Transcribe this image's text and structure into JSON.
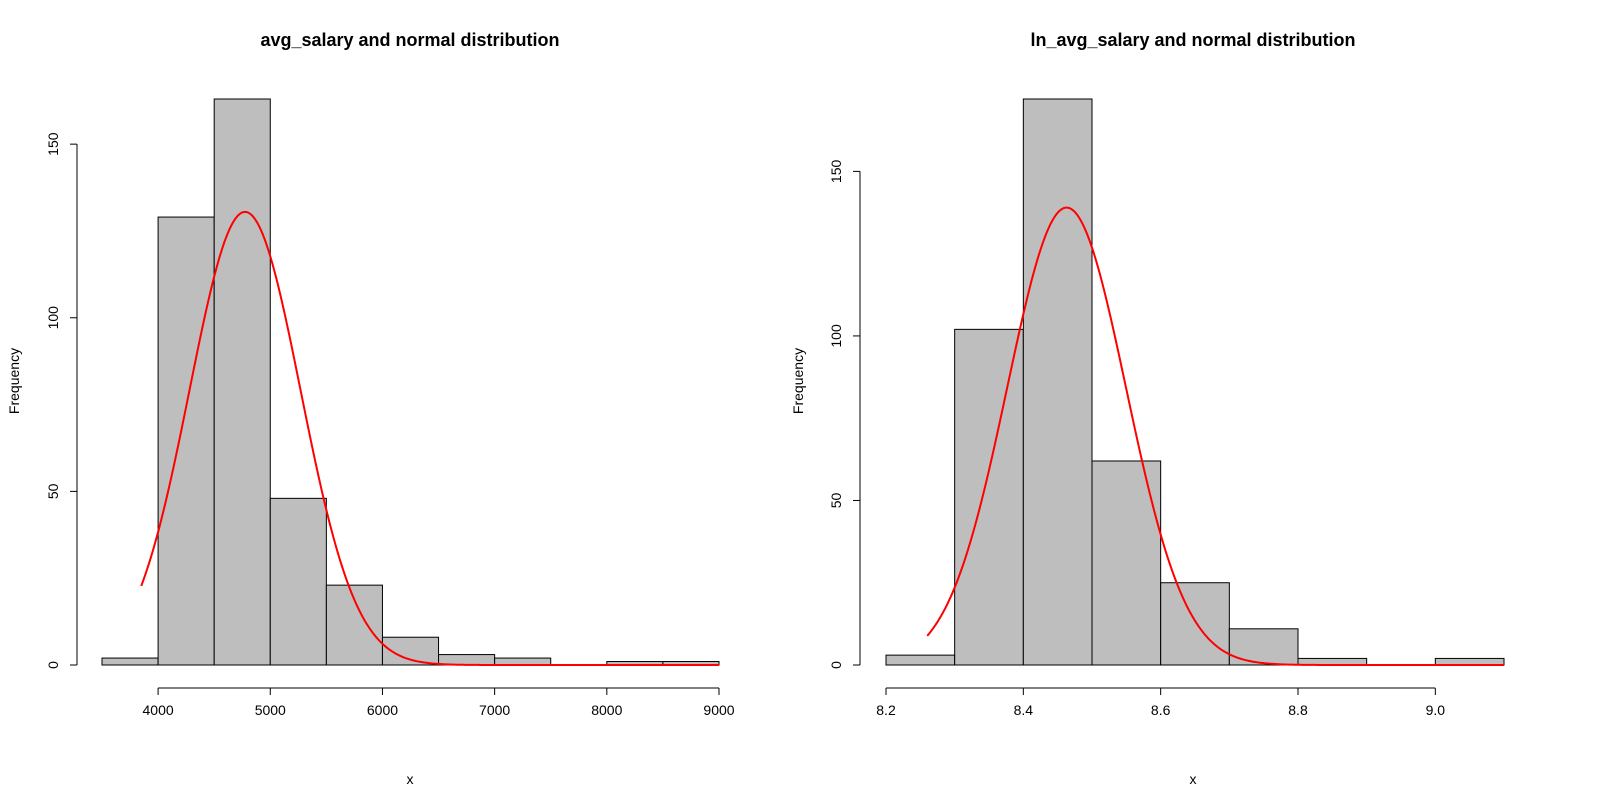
{
  "chart_data": [
    {
      "type": "bar",
      "title": "avg_salary and normal distribution",
      "xlabel": "x",
      "ylabel": "Frequency",
      "bin_edges": [
        3500,
        4000,
        4500,
        5000,
        5500,
        6000,
        6500,
        7000,
        7500,
        8000,
        8500,
        9000
      ],
      "values": [
        2,
        129,
        163,
        48,
        23,
        8,
        3,
        2,
        0,
        1,
        1
      ],
      "xticks": [
        4000,
        5000,
        6000,
        7000,
        8000,
        9000
      ],
      "xtick_labels": [
        "4000",
        "5000",
        "6000",
        "7000",
        "8000",
        "9000"
      ],
      "yticks": [
        0,
        50,
        100,
        150
      ],
      "ytick_labels": [
        "0",
        "50",
        "100",
        "150"
      ],
      "xlim": [
        3500,
        9000
      ],
      "ylim": [
        0,
        163
      ],
      "bar_color": "#bebebe",
      "normal_curve": {
        "color": "#ff0000",
        "mean": 4775,
        "sd": 495,
        "peak": 130.5,
        "x_range": [
          3850,
          9000
        ]
      }
    },
    {
      "type": "bar",
      "title": "ln_avg_salary and normal distribution",
      "xlabel": "x",
      "ylabel": "Frequency",
      "bin_edges": [
        8.2,
        8.3,
        8.4,
        8.5,
        8.6,
        8.7,
        8.8,
        8.9,
        9.0,
        9.1
      ],
      "values": [
        3,
        102,
        172,
        62,
        25,
        11,
        2,
        0,
        2
      ],
      "xticks": [
        8.2,
        8.4,
        8.6,
        8.8,
        9.0
      ],
      "xtick_labels": [
        "8.2",
        "8.4",
        "8.6",
        "8.8",
        "9.0"
      ],
      "yticks": [
        0,
        50,
        100,
        150
      ],
      "ytick_labels": [
        "0",
        "50",
        "100",
        "150"
      ],
      "xlim": [
        8.2,
        9.1
      ],
      "ylim": [
        0,
        172
      ],
      "bar_color": "#bebebe",
      "normal_curve": {
        "color": "#ff0000",
        "mean": 8.463,
        "sd": 0.0865,
        "peak": 139,
        "x_range": [
          8.26,
          9.1
        ]
      }
    }
  ]
}
